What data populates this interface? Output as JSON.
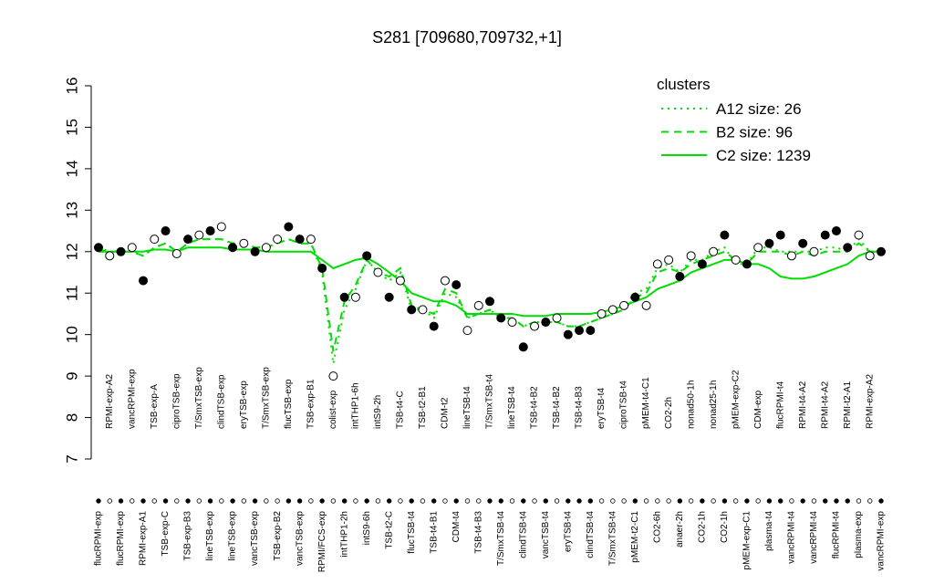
{
  "chart_data": {
    "type": "line",
    "title": "S281 [709680,709732,+1]",
    "categories": [
      "flucRPMI-exp",
      "RPMI-exp-A2",
      "flucRPMI-exp",
      "vancRPMI-exp",
      "RPMI-exp-A1",
      "TSB-exp-A",
      "TSB-exp-C",
      "ciproTSB-exp",
      "TSB-exp-B3",
      "T/SmxTSB-exp",
      "lineTSB-exp",
      "clindTSB-exp",
      "lineTSB-exp",
      "eryTSB-exp",
      "vancTSB-exp",
      "T/SmxTSB-exp",
      "TSB-exp-B2",
      "flucTSB-exp",
      "vancTSB-exp",
      "TSB-exp-B1",
      "RPMI/FCS-exp",
      "colist-exp",
      "intTHP1-2h",
      "intTHP1-6h",
      "intS9-6h",
      "intS9-2h",
      "TSB-t2-C",
      "TSB-t4-C",
      "flucTSB-t4",
      "TSB-t2-B1",
      "TSB-t4-B1",
      "CDM-t2",
      "CDM-t4",
      "lineTSB-t4",
      "TSB-t4-B3",
      "T/SmxTSB-t4",
      "T/SmxTSB-t4",
      "lineTSB-t4",
      "clindTSB-t4",
      "TSB-t4-B2",
      "vancTSB-t4",
      "TSB-t4-B2",
      "eryTSB-t4",
      "TSB-t4-B3",
      "clindTSB-t4",
      "eryTSB-t4",
      "T/SmxTSB-t4",
      "ciproTSB-t4",
      "pMEM-t2-C1",
      "pMEM-t4-C1",
      "CO2-6h",
      "CO2-2h",
      "anaer-2h",
      "nonad50-1h",
      "CO2-1h",
      "nonad25-1h",
      "CO2-1h",
      "pMEM-exp-C2",
      "pMEM-exp-C1",
      "CDM-exp",
      "plasma-t4",
      "flucRPMI-t4",
      "vancRPMI-t4",
      "RPMI-t4-A2",
      "vancRPMI-t4",
      "RPMI-t4-A2",
      "flucRPMI-t4",
      "RPMI-t2-A1",
      "plasma-exp",
      "RPMI-exp-A2",
      "vancRPMI-exp"
    ],
    "values": [
      12.1,
      11.9,
      12.0,
      12.1,
      11.3,
      12.3,
      12.5,
      11.95,
      12.3,
      12.4,
      12.5,
      12.6,
      12.1,
      12.2,
      12.0,
      12.1,
      12.3,
      12.6,
      12.3,
      12.3,
      11.6,
      9.0,
      10.9,
      10.9,
      11.9,
      11.5,
      10.9,
      11.3,
      10.6,
      10.6,
      10.2,
      11.3,
      11.2,
      10.1,
      10.7,
      10.8,
      10.4,
      10.3,
      9.7,
      10.2,
      10.3,
      10.4,
      10.0,
      10.1,
      10.1,
      10.5,
      10.6,
      10.7,
      10.9,
      10.7,
      11.7,
      11.8,
      11.4,
      11.9,
      11.7,
      12.0,
      12.4,
      11.8,
      11.7,
      12.1,
      12.2,
      12.4,
      11.9,
      12.2,
      12.0,
      12.4,
      12.5,
      12.1,
      12.4,
      11.9,
      12.0
    ],
    "point_colors": [
      "#000",
      "#fff",
      "#000",
      "#fff",
      "#000",
      "#fff",
      "#000",
      "#fff",
      "#000",
      "#fff",
      "#000",
      "#fff",
      "#000",
      "#fff",
      "#000",
      "#fff",
      "#fff",
      "#000",
      "#000",
      "#fff",
      "#000",
      "#fff",
      "#000",
      "#fff",
      "#000",
      "#fff",
      "#000",
      "#fff",
      "#000",
      "#fff",
      "#000",
      "#fff",
      "#000",
      "#fff",
      "#fff",
      "#000",
      "#000",
      "#fff",
      "#000",
      "#fff",
      "#000",
      "#fff",
      "#000",
      "#000",
      "#000",
      "#fff",
      "#fff",
      "#fff",
      "#000",
      "#fff",
      "#fff",
      "#fff",
      "#000",
      "#fff",
      "#000",
      "#fff",
      "#000",
      "#fff",
      "#000",
      "#fff",
      "#000",
      "#000",
      "#fff",
      "#000",
      "#fff",
      "#000",
      "#000",
      "#000",
      "#fff",
      "#fff",
      "#000"
    ],
    "series": [
      {
        "name": "A12 size: 26",
        "color": "#00dd00",
        "dash": "dotted",
        "values": [
          12.1,
          12.0,
          12.0,
          12.0,
          11.9,
          12.1,
          12.2,
          12.0,
          12.2,
          12.3,
          12.3,
          12.3,
          12.2,
          12.2,
          12.1,
          12.1,
          12.2,
          12.3,
          12.2,
          12.2,
          11.5,
          9.3,
          10.6,
          11.1,
          11.8,
          11.5,
          11.3,
          11.5,
          10.6,
          10.6,
          10.4,
          11.0,
          10.9,
          10.4,
          10.5,
          10.6,
          10.4,
          10.4,
          10.2,
          10.3,
          10.3,
          10.3,
          10.2,
          10.2,
          10.3,
          10.4,
          10.5,
          10.7,
          11.0,
          11.1,
          11.6,
          11.7,
          11.5,
          11.8,
          11.8,
          12.0,
          12.1,
          11.7,
          11.7,
          12.1,
          12.1,
          12.0,
          12.0,
          12.0,
          12.0,
          12.1,
          12.1,
          12.0,
          12.3,
          12.0,
          12.0
        ]
      },
      {
        "name": "B2 size: 96",
        "color": "#00dd00",
        "dash": "dashed",
        "values": [
          12.05,
          12.0,
          12.0,
          12.0,
          11.9,
          12.1,
          12.2,
          12.0,
          12.2,
          12.3,
          12.3,
          12.3,
          12.2,
          12.2,
          12.1,
          12.1,
          12.2,
          12.3,
          12.2,
          12.2,
          11.6,
          9.6,
          10.8,
          11.2,
          11.8,
          11.5,
          11.4,
          11.6,
          10.7,
          10.6,
          10.5,
          11.1,
          11.0,
          10.4,
          10.5,
          10.6,
          10.4,
          10.4,
          10.2,
          10.3,
          10.3,
          10.3,
          10.2,
          10.2,
          10.3,
          10.4,
          10.5,
          10.6,
          10.9,
          11.0,
          11.5,
          11.6,
          11.5,
          11.7,
          11.8,
          11.9,
          12.0,
          11.8,
          11.7,
          12.0,
          12.0,
          12.0,
          11.9,
          12.0,
          11.9,
          12.0,
          12.0,
          12.0,
          12.2,
          12.0,
          12.0
        ]
      },
      {
        "name": "C2 size: 1239",
        "color": "#00dd00",
        "dash": "solid",
        "values": [
          12.0,
          12.0,
          12.0,
          12.0,
          12.0,
          12.05,
          12.05,
          12.0,
          12.1,
          12.1,
          12.1,
          12.1,
          12.05,
          12.05,
          12.05,
          12.0,
          12.0,
          12.0,
          12.0,
          12.0,
          11.8,
          11.6,
          11.7,
          11.8,
          11.85,
          11.7,
          11.5,
          11.3,
          11.0,
          10.9,
          10.8,
          10.8,
          10.7,
          10.5,
          10.5,
          10.5,
          10.5,
          10.5,
          10.45,
          10.45,
          10.45,
          10.5,
          10.5,
          10.5,
          10.5,
          10.55,
          10.6,
          10.7,
          10.8,
          10.9,
          11.1,
          11.2,
          11.3,
          11.5,
          11.6,
          11.7,
          11.8,
          11.8,
          11.7,
          11.7,
          11.6,
          11.4,
          11.35,
          11.35,
          11.4,
          11.5,
          11.6,
          11.7,
          11.9,
          12.0,
          12.0
        ]
      }
    ],
    "legend_title": "clusters",
    "ylim": [
      7,
      16
    ],
    "yticks": [
      7,
      8,
      9,
      10,
      11,
      12,
      13,
      14,
      15,
      16
    ]
  }
}
